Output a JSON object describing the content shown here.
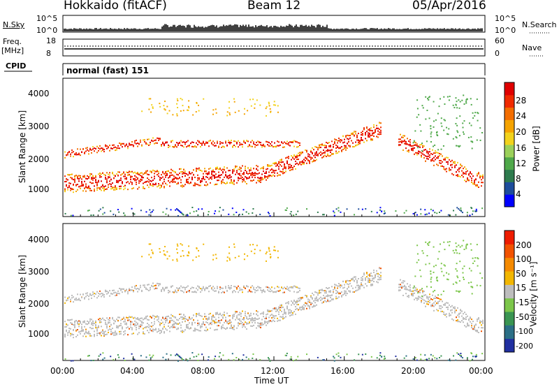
{
  "header": {
    "station": "Hokkaido (fitACF)",
    "beam": "Beam 12",
    "date": "05/Apr/2016"
  },
  "sky_panel": {
    "left_label": "N.Sky",
    "right_label": "N.Search",
    "y_top": "10^5",
    "y_bottom": "10^0"
  },
  "freq_panel": {
    "left_label_1": "Freq.",
    "left_label_2": "[MHz]",
    "left_ticks": [
      "18",
      "8"
    ],
    "right_label": "Nave",
    "right_ticks": [
      "60",
      "0"
    ]
  },
  "cpid_panel": {
    "label": "CPID",
    "mode_text": "normal (fast) 151"
  },
  "chart_data": [
    {
      "type": "heatmap",
      "name": "power",
      "ylabel": "Slant Range [km]",
      "y_ticks": [
        "4000",
        "3000",
        "2000",
        "1000"
      ],
      "colorbar_label": "Power [dB]",
      "colorbar_ticks": [
        "28",
        "24",
        "20",
        "16",
        "12",
        "8",
        "4"
      ],
      "colors": [
        "#0000ff",
        "#1e4d9c",
        "#2e7b4e",
        "#4fa84a",
        "#9bd05a",
        "#f2d21c",
        "#f5a300",
        "#f36d00",
        "#f02a00",
        "#e00000"
      ]
    },
    {
      "type": "heatmap",
      "name": "velocity",
      "ylabel": "Slant Range [km]",
      "y_ticks": [
        "4000",
        "3000",
        "2000",
        "1000"
      ],
      "colorbar_label": "Velocity [m s⁻¹]",
      "colorbar_ticks": [
        "200",
        "100",
        "50",
        "15",
        "-15",
        "-50",
        "-100",
        "-200"
      ],
      "colors": [
        "#202fa0",
        "#2b6f86",
        "#3a9552",
        "#7cc64a",
        "#bdbdbd",
        "#f2b600",
        "#f58a00",
        "#f25200",
        "#ee1c00"
      ]
    }
  ],
  "x_axis": {
    "label": "Time UT",
    "ticks": [
      "00:00",
      "04:00",
      "08:00",
      "12:00",
      "16:00",
      "20:00",
      "00:00"
    ]
  }
}
